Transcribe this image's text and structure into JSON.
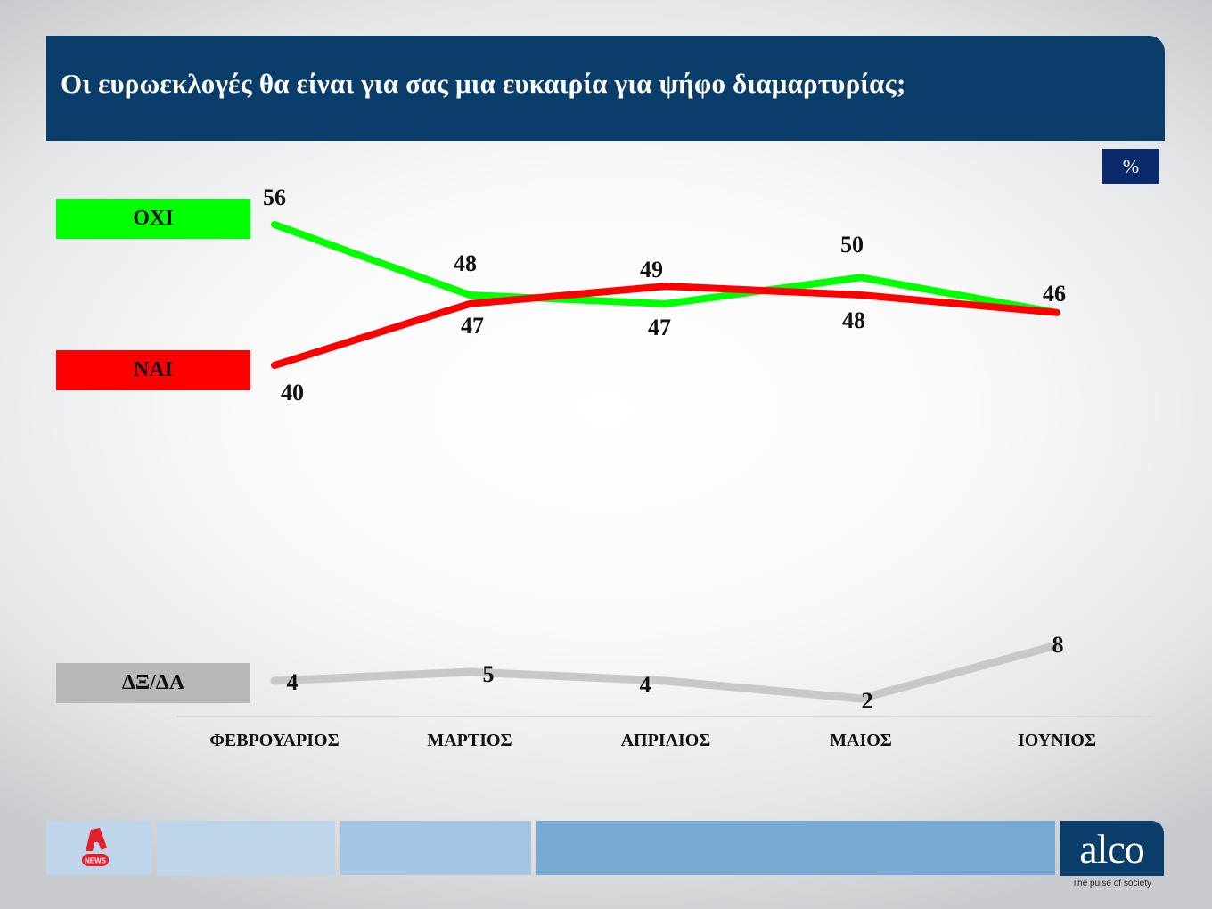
{
  "header": {
    "title": "Οι ευρωεκλογές θα είναι για σας μια ευκαιρία για ψήφο διαμαρτυρίας;"
  },
  "unit_badge": "%",
  "legend": {
    "oxi": "OXI",
    "nai": "NAI",
    "dkda": "ΔΞ/ΔΑ"
  },
  "colors": {
    "header_bg": "#0b3d6b",
    "oxi": "#00ff00",
    "nai": "#ff0000",
    "dkda": "#c8c8c8",
    "footer_light": "#bfd5eb",
    "footer_mid": "#a3c6e5",
    "footer_dark": "#78aad4"
  },
  "footer": {
    "news_logo_label": "NEWS",
    "brand": "alco",
    "tagline": "The pulse of society"
  },
  "chart_data": {
    "type": "line",
    "title": "Οι ευρωεκλογές θα είναι για σας μια ευκαιρία για ψήφο διαμαρτυρίας;",
    "xlabel": "",
    "ylabel": "%",
    "categories": [
      "ΦΕΒΡΟΥΑΡΙΟΣ",
      "ΜΑΡΤΙΟΣ",
      "ΑΠΡΙΛΙΟΣ",
      "ΜΑΙΟΣ",
      "ΙΟΥΝΙΟΣ"
    ],
    "series": [
      {
        "name": "OXI",
        "color": "#00ff00",
        "values": [
          56,
          48,
          47,
          50,
          46
        ]
      },
      {
        "name": "NAI",
        "color": "#ff0000",
        "values": [
          40,
          47,
          49,
          48,
          46
        ]
      },
      {
        "name": "ΔΞ/ΔΑ",
        "color": "#c8c8c8",
        "values": [
          4,
          5,
          4,
          2,
          8
        ]
      }
    ],
    "grid": false,
    "legend_position": "left"
  }
}
